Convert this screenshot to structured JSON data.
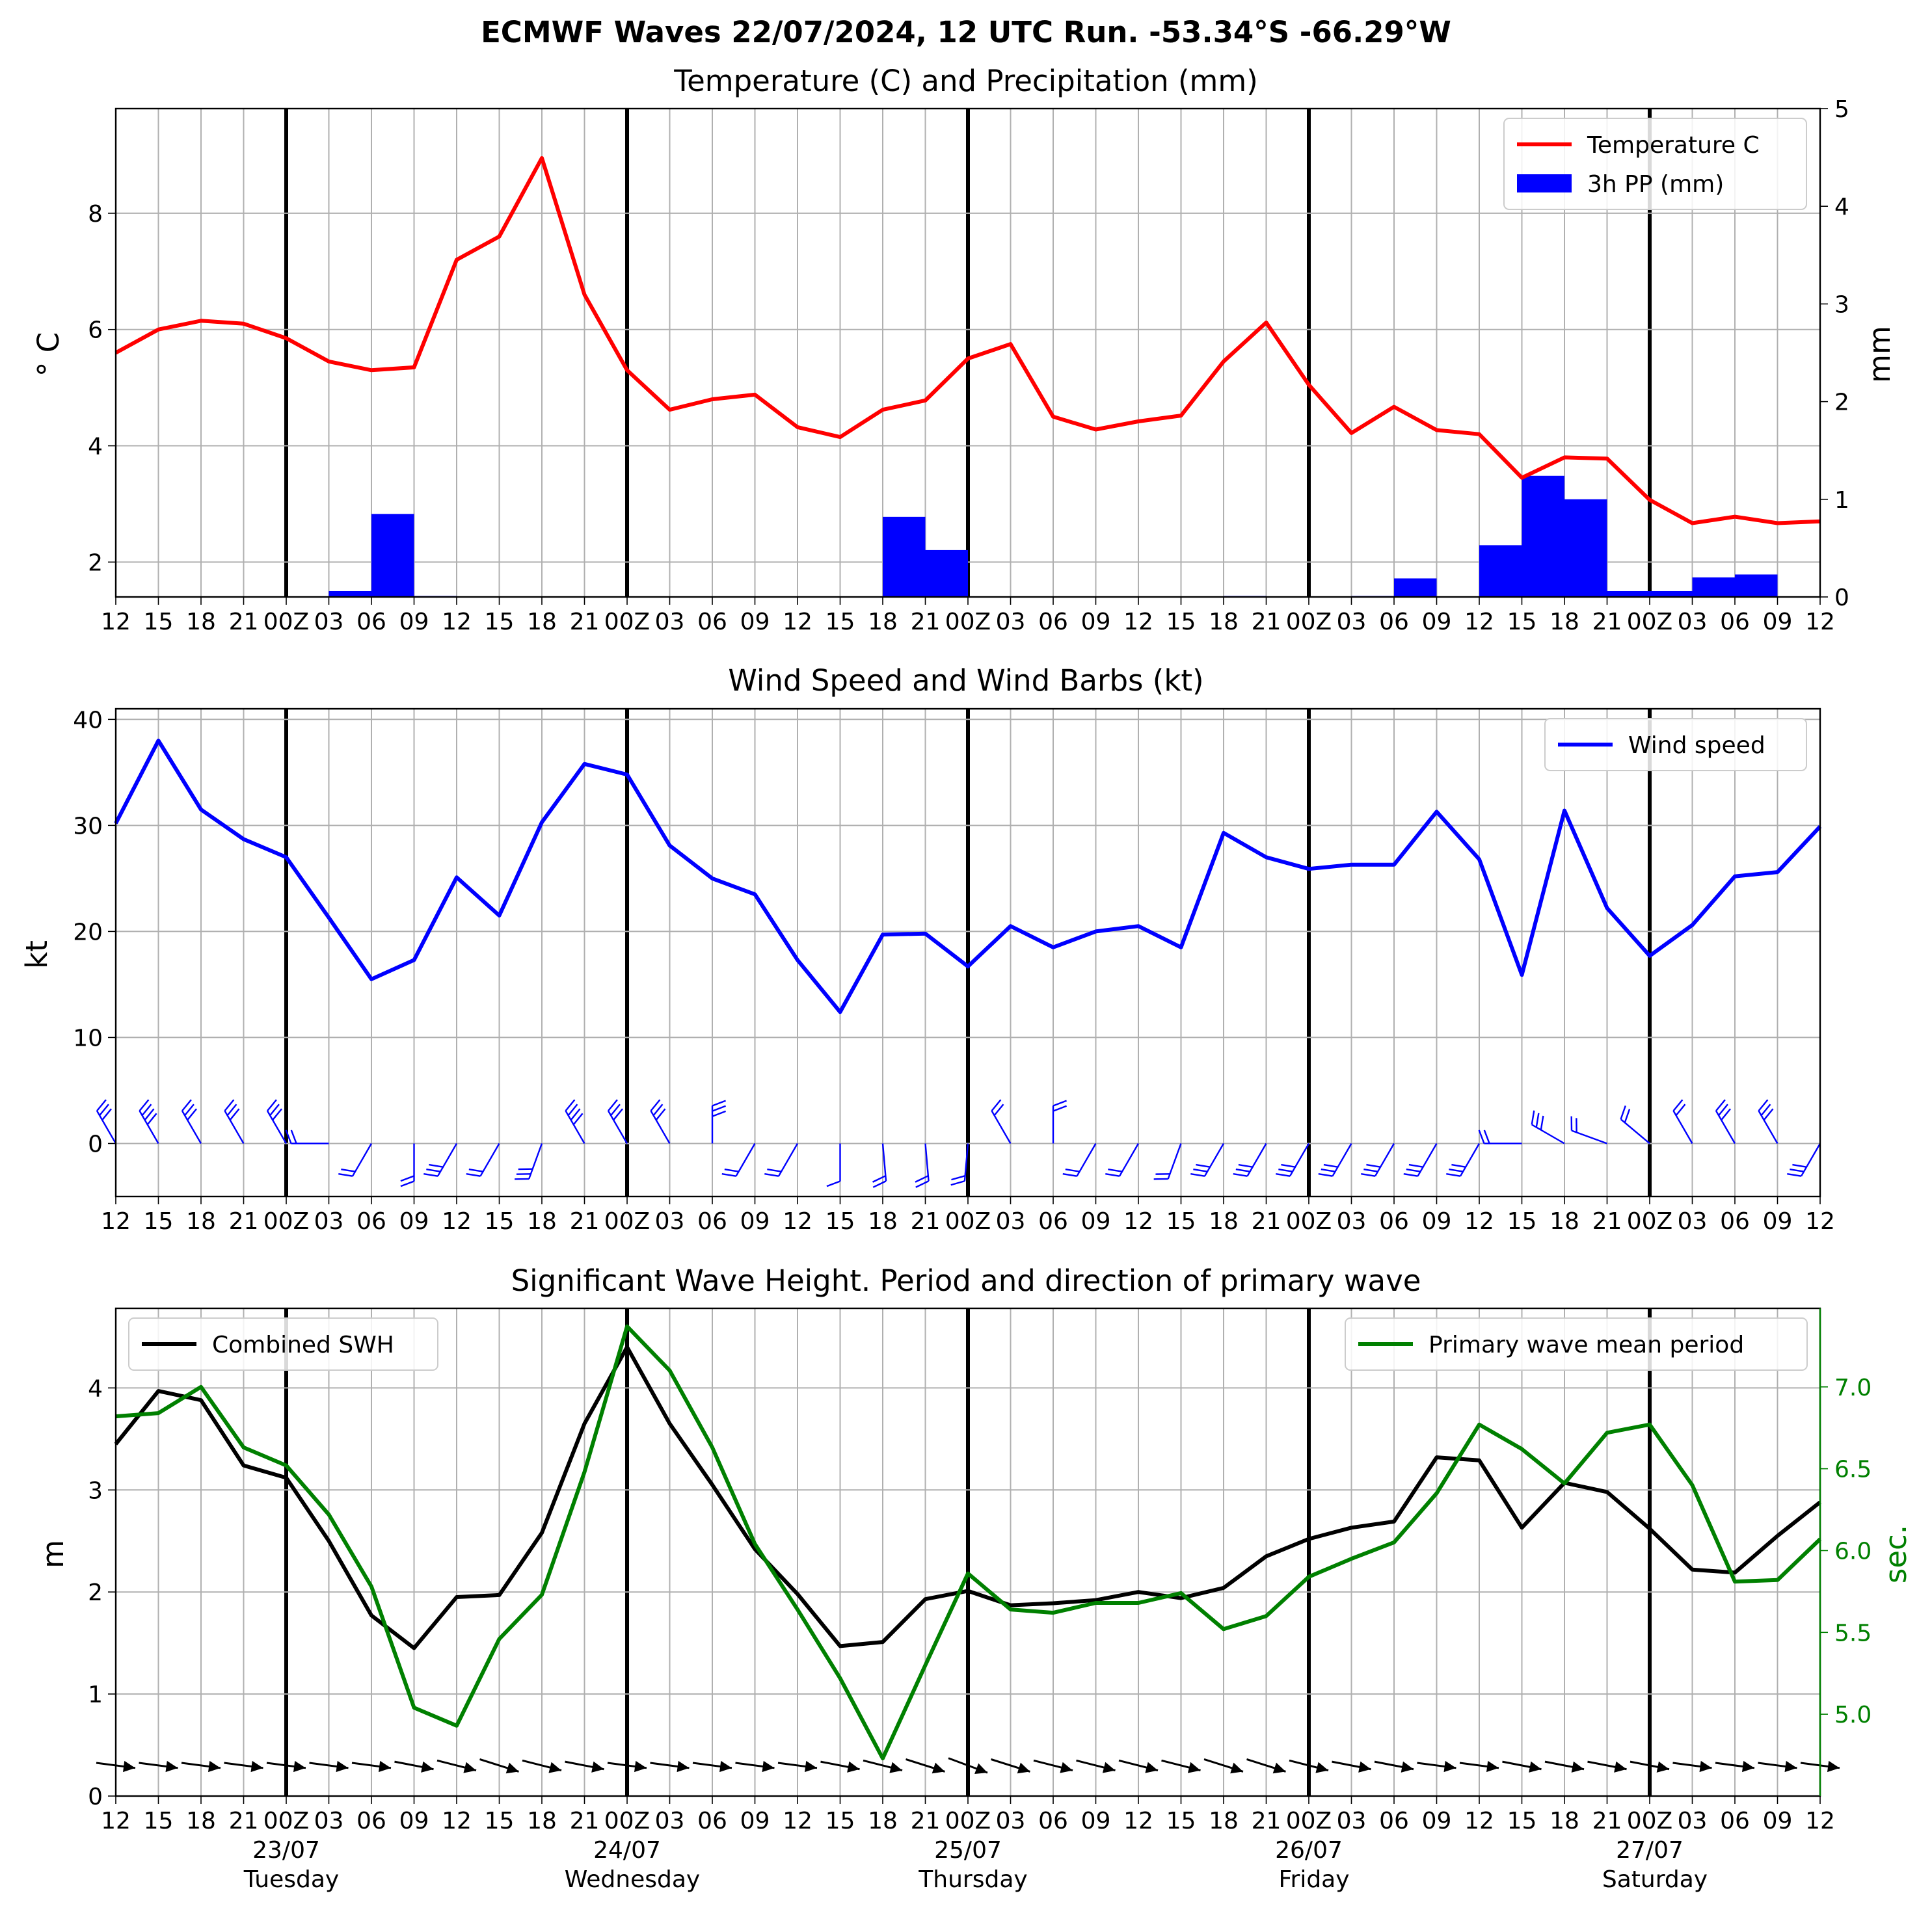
{
  "suptitle": "ECMWF Waves 22/07/2024, 12 UTC Run. -53.34°S -66.29°W",
  "x_tick_labels": [
    "12",
    "15",
    "18",
    "21",
    "00Z",
    "03",
    "06",
    "09",
    "12",
    "15",
    "18",
    "21",
    "00Z",
    "03",
    "06",
    "09",
    "12",
    "15",
    "18",
    "21",
    "00Z",
    "03",
    "06",
    "09",
    "12",
    "15",
    "18",
    "21",
    "00Z",
    "03",
    "06",
    "09",
    "12",
    "15",
    "18",
    "21",
    "00Z",
    "03",
    "06",
    "09",
    "12"
  ],
  "day_labels": [
    {
      "date": "23/07",
      "day": "Tuesday"
    },
    {
      "date": "24/07",
      "day": "Wednesday"
    },
    {
      "date": "25/07",
      "day": "Thursday"
    },
    {
      "date": "26/07",
      "day": "Friday"
    },
    {
      "date": "27/07",
      "day": "Saturday"
    }
  ],
  "colors": {
    "temperature": "#ff0000",
    "precip": "#0000ff",
    "wind": "#0000ff",
    "swh": "#000000",
    "period": "#008000",
    "grid": "#b0b0b0"
  },
  "chart_data": [
    {
      "type": "line",
      "title": "Temperature (C) and Precipitation (mm)",
      "ylabel": "° C",
      "ylabel_right": "mm",
      "ylim": [
        1.4,
        9.8
      ],
      "ylim_right": [
        0,
        5
      ],
      "yticks": [
        2,
        4,
        6,
        8
      ],
      "yticks_right": [
        0,
        1,
        2,
        3,
        4,
        5
      ],
      "legend_position": "upper right",
      "grid": true,
      "series": [
        {
          "name": "Temperature C",
          "type": "line",
          "axis": "left",
          "values": [
            5.6,
            6.0,
            6.15,
            6.1,
            5.85,
            5.45,
            5.3,
            5.35,
            7.2,
            7.6,
            8.95,
            6.6,
            5.3,
            4.62,
            4.8,
            4.88,
            4.32,
            4.15,
            4.62,
            4.78,
            5.5,
            5.75,
            4.5,
            4.28,
            4.42,
            4.52,
            5.45,
            6.12,
            5.05,
            4.22,
            4.67,
            4.27,
            4.2,
            3.45,
            3.8,
            3.78,
            3.07,
            2.67,
            2.78,
            2.67,
            2.7
          ]
        },
        {
          "name": "3h PP (mm)",
          "type": "bar",
          "axis": "right",
          "values": [
            0,
            0,
            0,
            0,
            0,
            0.06,
            0.85,
            0.01,
            0,
            0,
            0,
            0,
            0,
            0,
            0,
            0,
            0,
            0,
            0.82,
            0.48,
            0,
            0,
            0,
            0,
            0,
            0,
            0.01,
            0,
            0,
            0.01,
            0.19,
            0,
            0.53,
            1.24,
            1.0,
            0.06,
            0.06,
            0.2,
            0.23,
            0,
            0
          ]
        }
      ]
    },
    {
      "type": "line",
      "title": "Wind Speed and Wind Barbs (kt)",
      "ylabel": "kt",
      "ylim": [
        -5,
        41
      ],
      "yticks": [
        0,
        10,
        20,
        30,
        40
      ],
      "legend_position": "upper right",
      "grid": true,
      "series": [
        {
          "name": "Wind speed",
          "values": [
            30.2,
            38.0,
            31.5,
            28.7,
            27.0,
            21.3,
            15.5,
            17.3,
            25.1,
            21.5,
            30.3,
            35.8,
            34.8,
            28.1,
            25.0,
            23.5,
            17.3,
            12.4,
            19.7,
            19.8,
            16.7,
            20.5,
            18.5,
            20.0,
            20.5,
            18.5,
            29.3,
            27.0,
            25.9,
            26.3,
            26.3,
            31.3,
            26.8,
            15.9,
            31.4,
            22.2,
            17.7,
            20.6,
            25.2,
            25.6,
            29.9
          ]
        }
      ],
      "barbs": {
        "direction_deg": [
          60,
          60,
          60,
          60,
          60,
          0,
          300,
          270,
          300,
          300,
          290,
          60,
          60,
          60,
          90,
          300,
          300,
          270,
          265,
          265,
          275,
          60,
          90,
          300,
          300,
          290,
          300,
          300,
          300,
          300,
          300,
          300,
          300,
          0,
          30,
          20,
          40,
          60,
          60,
          60,
          300
        ]
      }
    },
    {
      "type": "line",
      "title": "Significant Wave Height. Period and direction of primary wave",
      "ylabel": "m",
      "ylabel_right": "sec.",
      "ylim": [
        0,
        4.78
      ],
      "ylim_right": [
        4.5,
        7.48
      ],
      "yticks": [
        0,
        1,
        2,
        3,
        4
      ],
      "yticks_right": [
        5.0,
        5.5,
        6.0,
        6.5,
        7.0
      ],
      "grid": true,
      "series": [
        {
          "name": "Combined SWH",
          "axis": "left",
          "legend_position": "upper left",
          "values": [
            3.45,
            3.97,
            3.88,
            3.24,
            3.12,
            2.5,
            1.77,
            1.45,
            1.95,
            1.97,
            2.58,
            3.65,
            4.4,
            3.65,
            3.05,
            2.42,
            1.98,
            1.47,
            1.51,
            1.93,
            2.01,
            1.87,
            1.89,
            1.92,
            2.0,
            1.94,
            2.04,
            2.35,
            2.52,
            2.63,
            2.69,
            3.32,
            3.29,
            2.63,
            3.07,
            2.98,
            2.62,
            2.22,
            2.19,
            2.55,
            2.88
          ]
        },
        {
          "name": "Primary wave mean period",
          "axis": "right",
          "legend_position": "upper right",
          "values": [
            6.82,
            6.84,
            7.0,
            6.63,
            6.52,
            6.22,
            5.78,
            5.04,
            4.93,
            5.46,
            5.73,
            6.48,
            7.37,
            7.1,
            6.63,
            6.04,
            5.64,
            5.22,
            4.73,
            5.3,
            5.86,
            5.64,
            5.62,
            5.68,
            5.68,
            5.74,
            5.52,
            5.6,
            5.84,
            5.95,
            6.05,
            6.35,
            6.77,
            6.62,
            6.41,
            6.72,
            6.77,
            6.4,
            5.81,
            5.82,
            6.07
          ]
        }
      ],
      "direction_arrows_deg": [
        10,
        10,
        10,
        10,
        10,
        10,
        10,
        15,
        20,
        25,
        20,
        15,
        10,
        10,
        10,
        10,
        10,
        15,
        20,
        25,
        30,
        25,
        20,
        20,
        20,
        20,
        25,
        25,
        20,
        15,
        15,
        10,
        10,
        15,
        15,
        15,
        15,
        10,
        10,
        10,
        10
      ]
    }
  ]
}
